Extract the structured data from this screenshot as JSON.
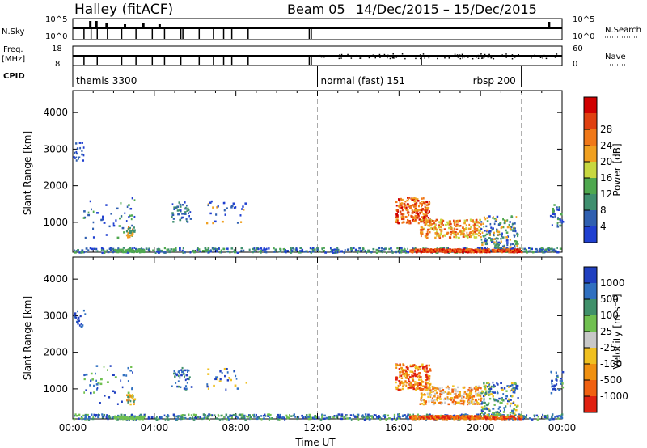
{
  "header": {
    "station": "Halley (fitACF)",
    "beam": "Beam 05",
    "date_range": "14/Dec/2015 – 15/Dec/2015"
  },
  "strip_labels": {
    "nsky": "N.Sky",
    "nsky_top": "10^5",
    "nsky_bottom": "10^0",
    "nsearch": "N.Search",
    "nsearch_top": "10^5",
    "nsearch_bottom": "10^0",
    "freq": "Freq.",
    "freq_unit": "[MHz]",
    "freq_top": "18",
    "freq_bottom": "8",
    "nave": "Nave",
    "nave_top": "60",
    "nave_bottom": "0",
    "cpid": "CPID"
  },
  "cpid_segments": [
    {
      "label": "themis 3300",
      "start_hour": 0
    },
    {
      "label": "normal (fast) 151",
      "start_hour": 12
    },
    {
      "label": "rbsp 200",
      "start_hour": 22
    }
  ],
  "chart_data": [
    {
      "type": "heatmap",
      "name": "power-panel",
      "ylabel": "Slant Range [km]",
      "yticks": [
        1000,
        2000,
        3000,
        4000
      ],
      "ylim": [
        180,
        4600
      ],
      "xlim": [
        0,
        24
      ],
      "colorbar": {
        "label": "Power [dB]",
        "ticks": [
          "4",
          "8",
          "12",
          "16",
          "20",
          "24",
          "28"
        ],
        "colors": [
          "#1f3fd0",
          "#2f5fb0",
          "#3f8f6f",
          "#4fa84f",
          "#c8d840",
          "#f0a020",
          "#f07818",
          "#e04010",
          "#d00000"
        ]
      }
    },
    {
      "type": "heatmap",
      "name": "velocity-panel",
      "ylabel": "Slant Range [km]",
      "yticks": [
        1000,
        2000,
        3000,
        4000
      ],
      "ylim": [
        180,
        4600
      ],
      "xlim": [
        0,
        24
      ],
      "xlabel": "Time UT",
      "xticks": [
        "00:00",
        "04:00",
        "08:00",
        "12:00",
        "16:00",
        "20:00",
        "00:00"
      ],
      "colorbar": {
        "label": "Velocity [m s⁻¹]",
        "ticks": [
          "1000",
          "500",
          "100",
          "25",
          "-25",
          "-100",
          "-500",
          "-1000"
        ],
        "colors": [
          "#2040c0",
          "#3070c0",
          "#40906a",
          "#70c050",
          "#c8c8c8",
          "#f0c020",
          "#f09010",
          "#f06010",
          "#e02010"
        ]
      }
    }
  ]
}
